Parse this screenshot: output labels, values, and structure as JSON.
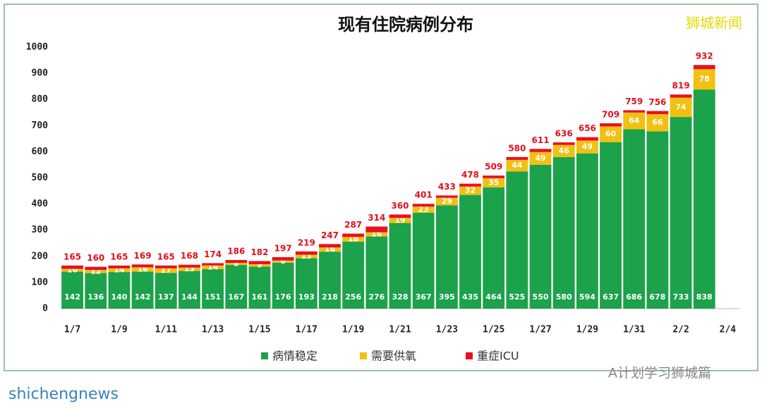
{
  "chart_data": {
    "type": "stacked_bar",
    "title": "现有住院病例分布",
    "categories": [
      "1/7",
      null,
      "1/9",
      null,
      "1/11",
      null,
      "1/13",
      null,
      "1/15",
      null,
      "1/17",
      null,
      "1/19",
      null,
      "1/21",
      null,
      "1/23",
      null,
      "1/25",
      null,
      "1/27",
      null,
      "1/29",
      null,
      "1/31",
      null,
      "2/2",
      null,
      "2/4"
    ],
    "series": [
      {
        "name": "病情稳定",
        "color": "#1ba24b",
        "values": [
          142,
          136,
          140,
          142,
          137,
          144,
          151,
          167,
          161,
          176,
          193,
          218,
          256,
          276,
          328,
          367,
          395,
          435,
          464,
          525,
          550,
          580,
          594,
          637,
          686,
          678,
          733,
          838,
          null
        ]
      },
      {
        "name": "需要供氧",
        "color": "#f1c012",
        "values": [
          10,
          12,
          14,
          16,
          17,
          13,
          14,
          8,
          9,
          8,
          13,
          16,
          18,
          16,
          19,
          23,
          29,
          32,
          35,
          44,
          49,
          46,
          49,
          60,
          64,
          66,
          74,
          78,
          null
        ]
      },
      {
        "name": "重症ICU",
        "color": "#e8111d",
        "values": [
          13,
          12,
          11,
          11,
          11,
          11,
          9,
          11,
          12,
          13,
          13,
          13,
          13,
          22,
          13,
          11,
          9,
          11,
          10,
          11,
          12,
          10,
          13,
          12,
          9,
          12,
          12,
          16,
          null
        ]
      }
    ],
    "totals": [
      165,
      160,
      165,
      169,
      165,
      168,
      174,
      186,
      182,
      197,
      219,
      247,
      287,
      314,
      360,
      401,
      433,
      478,
      509,
      580,
      611,
      636,
      656,
      709,
      759,
      756,
      819,
      932,
      null
    ],
    "ylim": [
      0,
      1000
    ],
    "yticks": [
      0,
      100,
      200,
      300,
      400,
      500,
      600,
      700,
      800,
      900,
      1000
    ],
    "grid": false,
    "watermarks": [
      "狮城新闻",
      "A计划学习狮城篇",
      "shichengnews"
    ]
  }
}
